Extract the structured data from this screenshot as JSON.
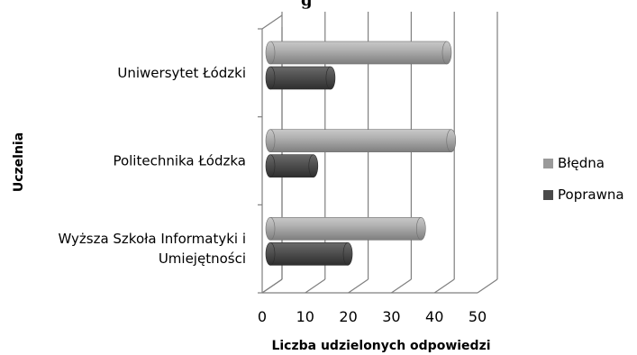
{
  "chart_data": {
    "type": "bar",
    "orientation": "horizontal",
    "three_d": true,
    "title_fragment": "g",
    "categories": [
      "Uniwersytet Łódzki",
      "Politechnika Łódzka",
      "Wyższa Szkoła Informatyki i Umiejętności"
    ],
    "category_lines": [
      [
        "Uniwersytet Łódzki"
      ],
      [
        "Politechnika Łódzka"
      ],
      [
        "Wyższa Szkoła Informatyki i",
        "Umiejętności"
      ]
    ],
    "series": [
      {
        "name": "Błędna",
        "color": "#9a9a9a",
        "values": [
          41,
          42,
          35
        ]
      },
      {
        "name": "Poprawna",
        "color": "#4a4a4a",
        "values": [
          14,
          10,
          18
        ]
      }
    ],
    "xlabel": "Liczba udzielonych odpowiedzi",
    "ylabel": "Uczelnia",
    "xlim": [
      0,
      50
    ],
    "xticks": [
      "0",
      "10",
      "20",
      "30",
      "40",
      "50"
    ],
    "grid": true,
    "legend_position": "right"
  }
}
